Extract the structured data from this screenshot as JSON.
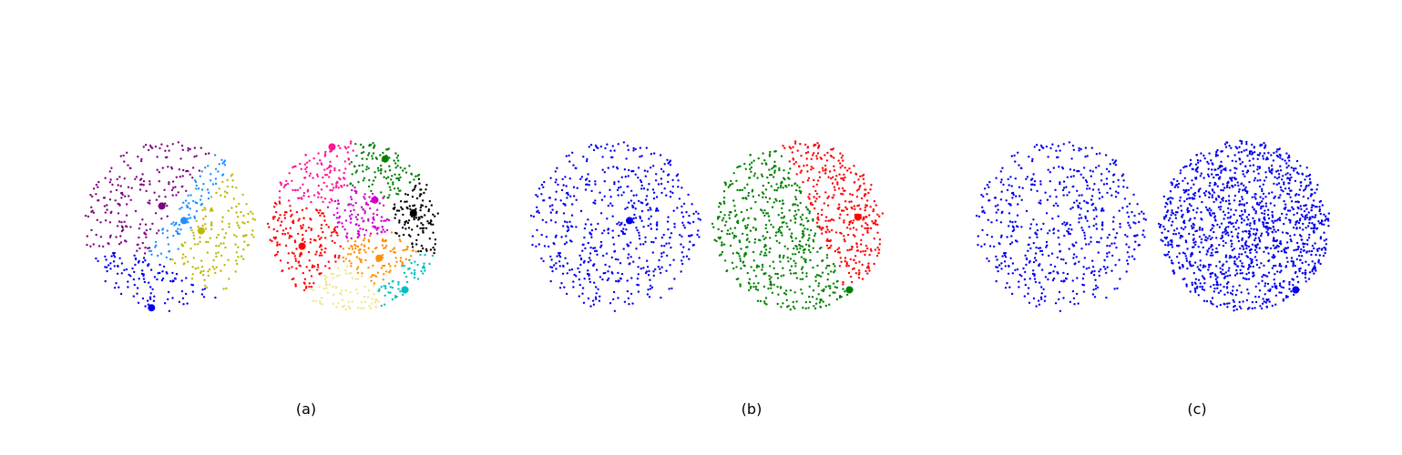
{
  "chart_data": [
    {
      "type": "scatter",
      "caption": "(a)",
      "xlim": [
        -1,
        1
      ],
      "ylim": [
        -1,
        1
      ],
      "grid": false,
      "disks": [
        {
          "seed": 11,
          "count": 560,
          "regions": [
            {
              "color": "#800080",
              "center": [
                -0.1,
                0.23
              ]
            },
            {
              "color": "#1e90ff",
              "center": [
                0.16,
                0.06
              ]
            },
            {
              "color": "#bdb800",
              "center": [
                0.36,
                -0.06
              ]
            },
            {
              "color": "#0000ee",
              "center": [
                -0.22,
                -0.96
              ]
            }
          ],
          "centroid_markers": [
            {
              "color": "#800080",
              "x": -0.1,
              "y": 0.23
            },
            {
              "color": "#1e90ff",
              "x": 0.16,
              "y": 0.06
            },
            {
              "color": "#bdb800",
              "x": 0.36,
              "y": -0.06
            },
            {
              "color": "#0000ee",
              "x": -0.22,
              "y": -0.96
            }
          ]
        },
        {
          "seed": 23,
          "count": 900,
          "regions": [
            {
              "color": "#ff1493",
              "center": [
                -0.42,
                0.72
              ]
            },
            {
              "color": "#008000",
              "center": [
                0.33,
                0.56
              ]
            },
            {
              "color": "#cc00cc",
              "center": [
                0.2,
                0.17
              ]
            },
            {
              "color": "#000000",
              "center": [
                0.7,
                0.15
              ]
            },
            {
              "color": "#ff0000",
              "center": [
                -0.6,
                -0.24
              ]
            },
            {
              "color": "#ff8c00",
              "center": [
                0.3,
                -0.38
              ]
            },
            {
              "color": "#00bfbf",
              "center": [
                0.6,
                -0.75
              ]
            },
            {
              "color": "#f0e68c",
              "center": [
                0.0,
                -0.85
              ]
            }
          ],
          "centroid_markers": [
            {
              "color": "#ff1493",
              "x": -0.25,
              "y": 0.92
            },
            {
              "color": "#008000",
              "x": 0.37,
              "y": 0.78
            },
            {
              "color": "#cc00cc",
              "x": 0.25,
              "y": 0.3
            },
            {
              "color": "#000000",
              "x": 0.7,
              "y": 0.15
            },
            {
              "color": "#ff0000",
              "x": -0.6,
              "y": -0.24
            },
            {
              "color": "#ff8c00",
              "x": 0.3,
              "y": -0.38
            },
            {
              "color": "#00bfbf",
              "x": 0.6,
              "y": -0.75
            }
          ]
        }
      ]
    },
    {
      "type": "scatter",
      "caption": "(b)",
      "xlim": [
        -1,
        1
      ],
      "ylim": [
        -1,
        1
      ],
      "grid": false,
      "disks": [
        {
          "seed": 11,
          "count": 560,
          "regions": [
            {
              "color": "#0000ee",
              "center": [
                0.0,
                0.0
              ]
            }
          ],
          "centroid_markers": [
            {
              "color": "#0000ee",
              "x": 0.16,
              "y": 0.06
            }
          ]
        },
        {
          "seed": 23,
          "count": 900,
          "regions": [
            {
              "color": "#008000",
              "center": [
                -0.3,
                -0.05
              ]
            },
            {
              "color": "#ff0000",
              "center": [
                0.62,
                0.35
              ]
            }
          ],
          "centroid_markers": [
            {
              "color": "#ff0000",
              "x": 0.7,
              "y": 0.1
            },
            {
              "color": "#008000",
              "x": 0.6,
              "y": -0.75
            }
          ]
        }
      ]
    },
    {
      "type": "scatter",
      "caption": "(c)",
      "xlim": [
        -1,
        1
      ],
      "ylim": [
        -1,
        1
      ],
      "grid": false,
      "disks": [
        {
          "seed": 11,
          "count": 560,
          "regions": [
            {
              "color": "#0000ee",
              "center": [
                0.0,
                0.0
              ]
            }
          ],
          "centroid_markers": []
        },
        {
          "seed": 23,
          "count": 1300,
          "regions": [
            {
              "color": "#0000ee",
              "center": [
                0.0,
                0.0
              ]
            }
          ],
          "centroid_markers": [
            {
              "color": "#0000ee",
              "x": 0.6,
              "y": -0.75
            }
          ]
        }
      ]
    }
  ]
}
